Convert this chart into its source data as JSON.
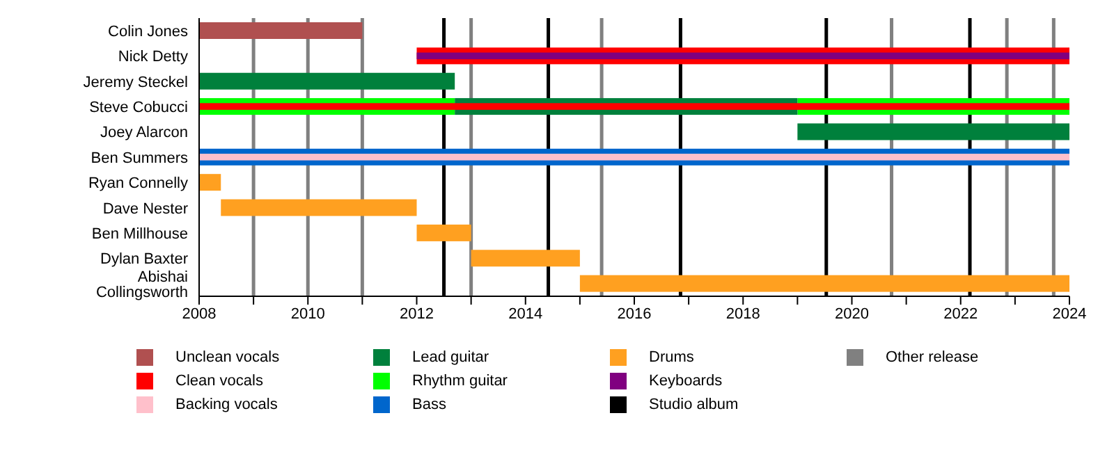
{
  "chart_data": {
    "type": "bar",
    "orientation": "horizontal",
    "categories": [
      "Colin Jones",
      "Nick Detty",
      "Jeremy Steckel",
      "Steve Cobucci",
      "Joey Alarcon",
      "Ben Summers",
      "Ryan Connelly",
      "Dave Nester",
      "Ben Millhouse",
      "Dylan Baxter",
      "Abishai Collingsworth"
    ],
    "series": [
      {
        "name": "Unclean vocals",
        "color": "#b05050",
        "base": [
          2008,
          null,
          null,
          null,
          null,
          null,
          null,
          null,
          null,
          null,
          null
        ],
        "values": [
          3,
          null,
          null,
          null,
          null,
          null,
          null,
          null,
          null,
          null,
          null
        ]
      },
      {
        "name": "Clean vocals",
        "color": "#ff0000",
        "base": [
          null,
          null,
          null,
          2008,
          null,
          null,
          null,
          null,
          null,
          null,
          null
        ],
        "values": [
          null,
          null,
          null,
          16,
          null,
          null,
          null,
          null,
          null,
          null,
          null
        ]
      },
      {
        "name": "Backing vocals",
        "color": "#ffc0cb",
        "base": [
          null,
          null,
          null,
          null,
          null,
          2008,
          null,
          null,
          null,
          null,
          null
        ],
        "values": [
          null,
          null,
          null,
          null,
          null,
          16,
          null,
          null,
          null,
          null,
          null
        ]
      },
      {
        "name": "Lead guitar",
        "color": "#00803c",
        "base": [
          null,
          null,
          2008,
          2012.7,
          2019,
          null,
          null,
          null,
          null,
          null,
          null
        ],
        "values": [
          null,
          null,
          4.7,
          6.3,
          5,
          null,
          null,
          null,
          null,
          null,
          null
        ]
      },
      {
        "name": "Rhythm guitar",
        "color": "#00ff00",
        "base": [
          null,
          null,
          null,
          2008,
          null,
          null,
          null,
          null,
          null,
          null,
          null
        ],
        "values": [
          null,
          null,
          null,
          4.7,
          null,
          null,
          null,
          null,
          null,
          null,
          null
        ]
      },
      {
        "color": "#00ff00",
        "base": [
          null,
          null,
          null,
          2019,
          null,
          null,
          null,
          null,
          null,
          null,
          null
        ],
        "values": [
          null,
          null,
          null,
          5,
          null,
          null,
          null,
          null,
          null,
          null,
          null
        ]
      },
      {
        "name": "Bass",
        "color": "#0066cc",
        "base": [
          null,
          null,
          null,
          null,
          null,
          2008,
          null,
          null,
          null,
          null,
          null
        ],
        "values": [
          null,
          null,
          null,
          null,
          null,
          16,
          null,
          null,
          null,
          null,
          null
        ]
      },
      {
        "name": "Drums",
        "color": "#ffa020",
        "base": [
          null,
          null,
          null,
          null,
          null,
          null,
          2008,
          2008.4,
          2012,
          2013,
          2015
        ],
        "values": [
          null,
          null,
          null,
          null,
          null,
          null,
          0.4,
          3.6,
          1,
          2,
          9
        ]
      },
      {
        "name": "Keyboards",
        "color": "#800080",
        "base": [
          null,
          2012,
          null,
          null,
          null,
          null,
          null,
          null,
          null,
          null,
          null
        ],
        "values": [
          null,
          12,
          null,
          null,
          null,
          null,
          null,
          null,
          null,
          null,
          null
        ]
      },
      {
        "color": "#ff0000",
        "base": [
          null,
          2012,
          null,
          null,
          null,
          null,
          null,
          null,
          null,
          null,
          null
        ],
        "values": [
          null,
          12,
          null,
          null,
          null,
          null,
          null,
          null,
          null,
          null,
          null
        ]
      }
    ],
    "xlim": [
      2008,
      2024
    ],
    "xticks": [
      2008,
      {
        "value": 2009,
        "label": null
      },
      2010,
      {
        "value": 2011,
        "label": null
      },
      2012,
      {
        "value": 2013,
        "label": null
      },
      2014,
      {
        "value": 2015,
        "label": null
      },
      2016,
      {
        "value": 2017,
        "label": null
      },
      2018,
      {
        "value": 2019,
        "label": null
      },
      2020,
      {
        "value": 2021,
        "label": null
      },
      2022,
      {
        "value": 2023,
        "label": null
      },
      2024
    ],
    "ref_lines": [
      {
        "axis": "x",
        "value": 2012.5,
        "label": "Studio album",
        "color": "#000000"
      },
      {
        "axis": "x",
        "value": 2014.42,
        "color": "#000000"
      },
      {
        "axis": "x",
        "value": 2016.85,
        "color": "#000000"
      },
      {
        "axis": "x",
        "value": 2019.53,
        "color": "#000000"
      },
      {
        "axis": "x",
        "value": 2022.17,
        "color": "#000000"
      },
      {
        "axis": "x",
        "value": 2009,
        "label": "Other release",
        "color": "#808080"
      },
      {
        "axis": "x",
        "value": 2010,
        "color": "#808080"
      },
      {
        "axis": "x",
        "value": 2011,
        "color": "#808080"
      },
      {
        "axis": "x",
        "value": 2013,
        "color": "#808080"
      },
      {
        "axis": "x",
        "value": 2015.4,
        "color": "#808080"
      },
      {
        "axis": "x",
        "value": 2020.73,
        "color": "#808080"
      },
      {
        "axis": "x",
        "value": 2022.85,
        "color": "#808080"
      },
      {
        "axis": "x",
        "value": 2023.71,
        "color": "#808080"
      }
    ],
    "legend": "bottom"
  }
}
